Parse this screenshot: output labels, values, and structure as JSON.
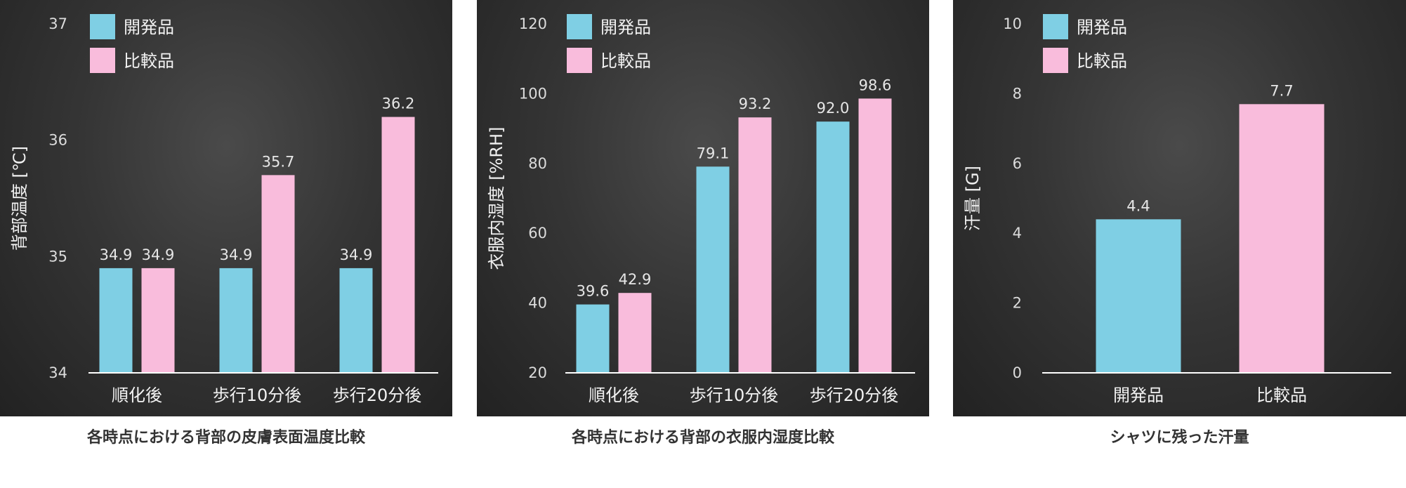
{
  "colors": {
    "dev": "#7fcfe4",
    "cmp": "#f9bcdc",
    "axis": "#ffffff"
  },
  "legend": [
    "開発品",
    "比較品"
  ],
  "captions": [
    "各時点における背部の皮膚表面温度比較",
    "各時点における背部の衣服内湿度比較",
    "シャツに残った汗量"
  ],
  "chart_data": [
    {
      "type": "bar",
      "ylabel": "背部温度 [℃]",
      "ylim": [
        34,
        37
      ],
      "yticks": [
        "34",
        "35",
        "36",
        "37"
      ],
      "categories": [
        "順化後",
        "歩行10分後",
        "歩行20分後"
      ],
      "series": [
        {
          "name": "開発品",
          "values": [
            34.9,
            34.9,
            34.9
          ],
          "labels": [
            "34.9",
            "34.9",
            "34.9"
          ]
        },
        {
          "name": "比較品",
          "values": [
            34.9,
            35.7,
            36.2
          ],
          "labels": [
            "34.9",
            "35.7",
            "36.2"
          ]
        }
      ],
      "legend_position": "top-left",
      "grid": false
    },
    {
      "type": "bar",
      "ylabel": "衣服内湿度 [%RH]",
      "ylim": [
        20,
        120
      ],
      "yticks": [
        "20",
        "40",
        "60",
        "80",
        "100",
        "120"
      ],
      "categories": [
        "順化後",
        "歩行10分後",
        "歩行20分後"
      ],
      "series": [
        {
          "name": "開発品",
          "values": [
            39.6,
            79.1,
            92.0
          ],
          "labels": [
            "39.6",
            "79.1",
            "92.0"
          ]
        },
        {
          "name": "比較品",
          "values": [
            42.9,
            93.2,
            98.6
          ],
          "labels": [
            "42.9",
            "93.2",
            "98.6"
          ]
        }
      ],
      "legend_position": "top-left",
      "grid": false
    },
    {
      "type": "bar",
      "ylabel": "汗量 [G]",
      "ylim": [
        0,
        10
      ],
      "yticks": [
        "0",
        "2",
        "4",
        "6",
        "8",
        "10"
      ],
      "categories": [
        "開発品",
        "比較品"
      ],
      "series": [
        {
          "values": [
            4.4,
            7.7
          ],
          "labels": [
            "4.4",
            "7.7"
          ]
        }
      ],
      "legend_position": "top-left",
      "grid": false
    }
  ]
}
